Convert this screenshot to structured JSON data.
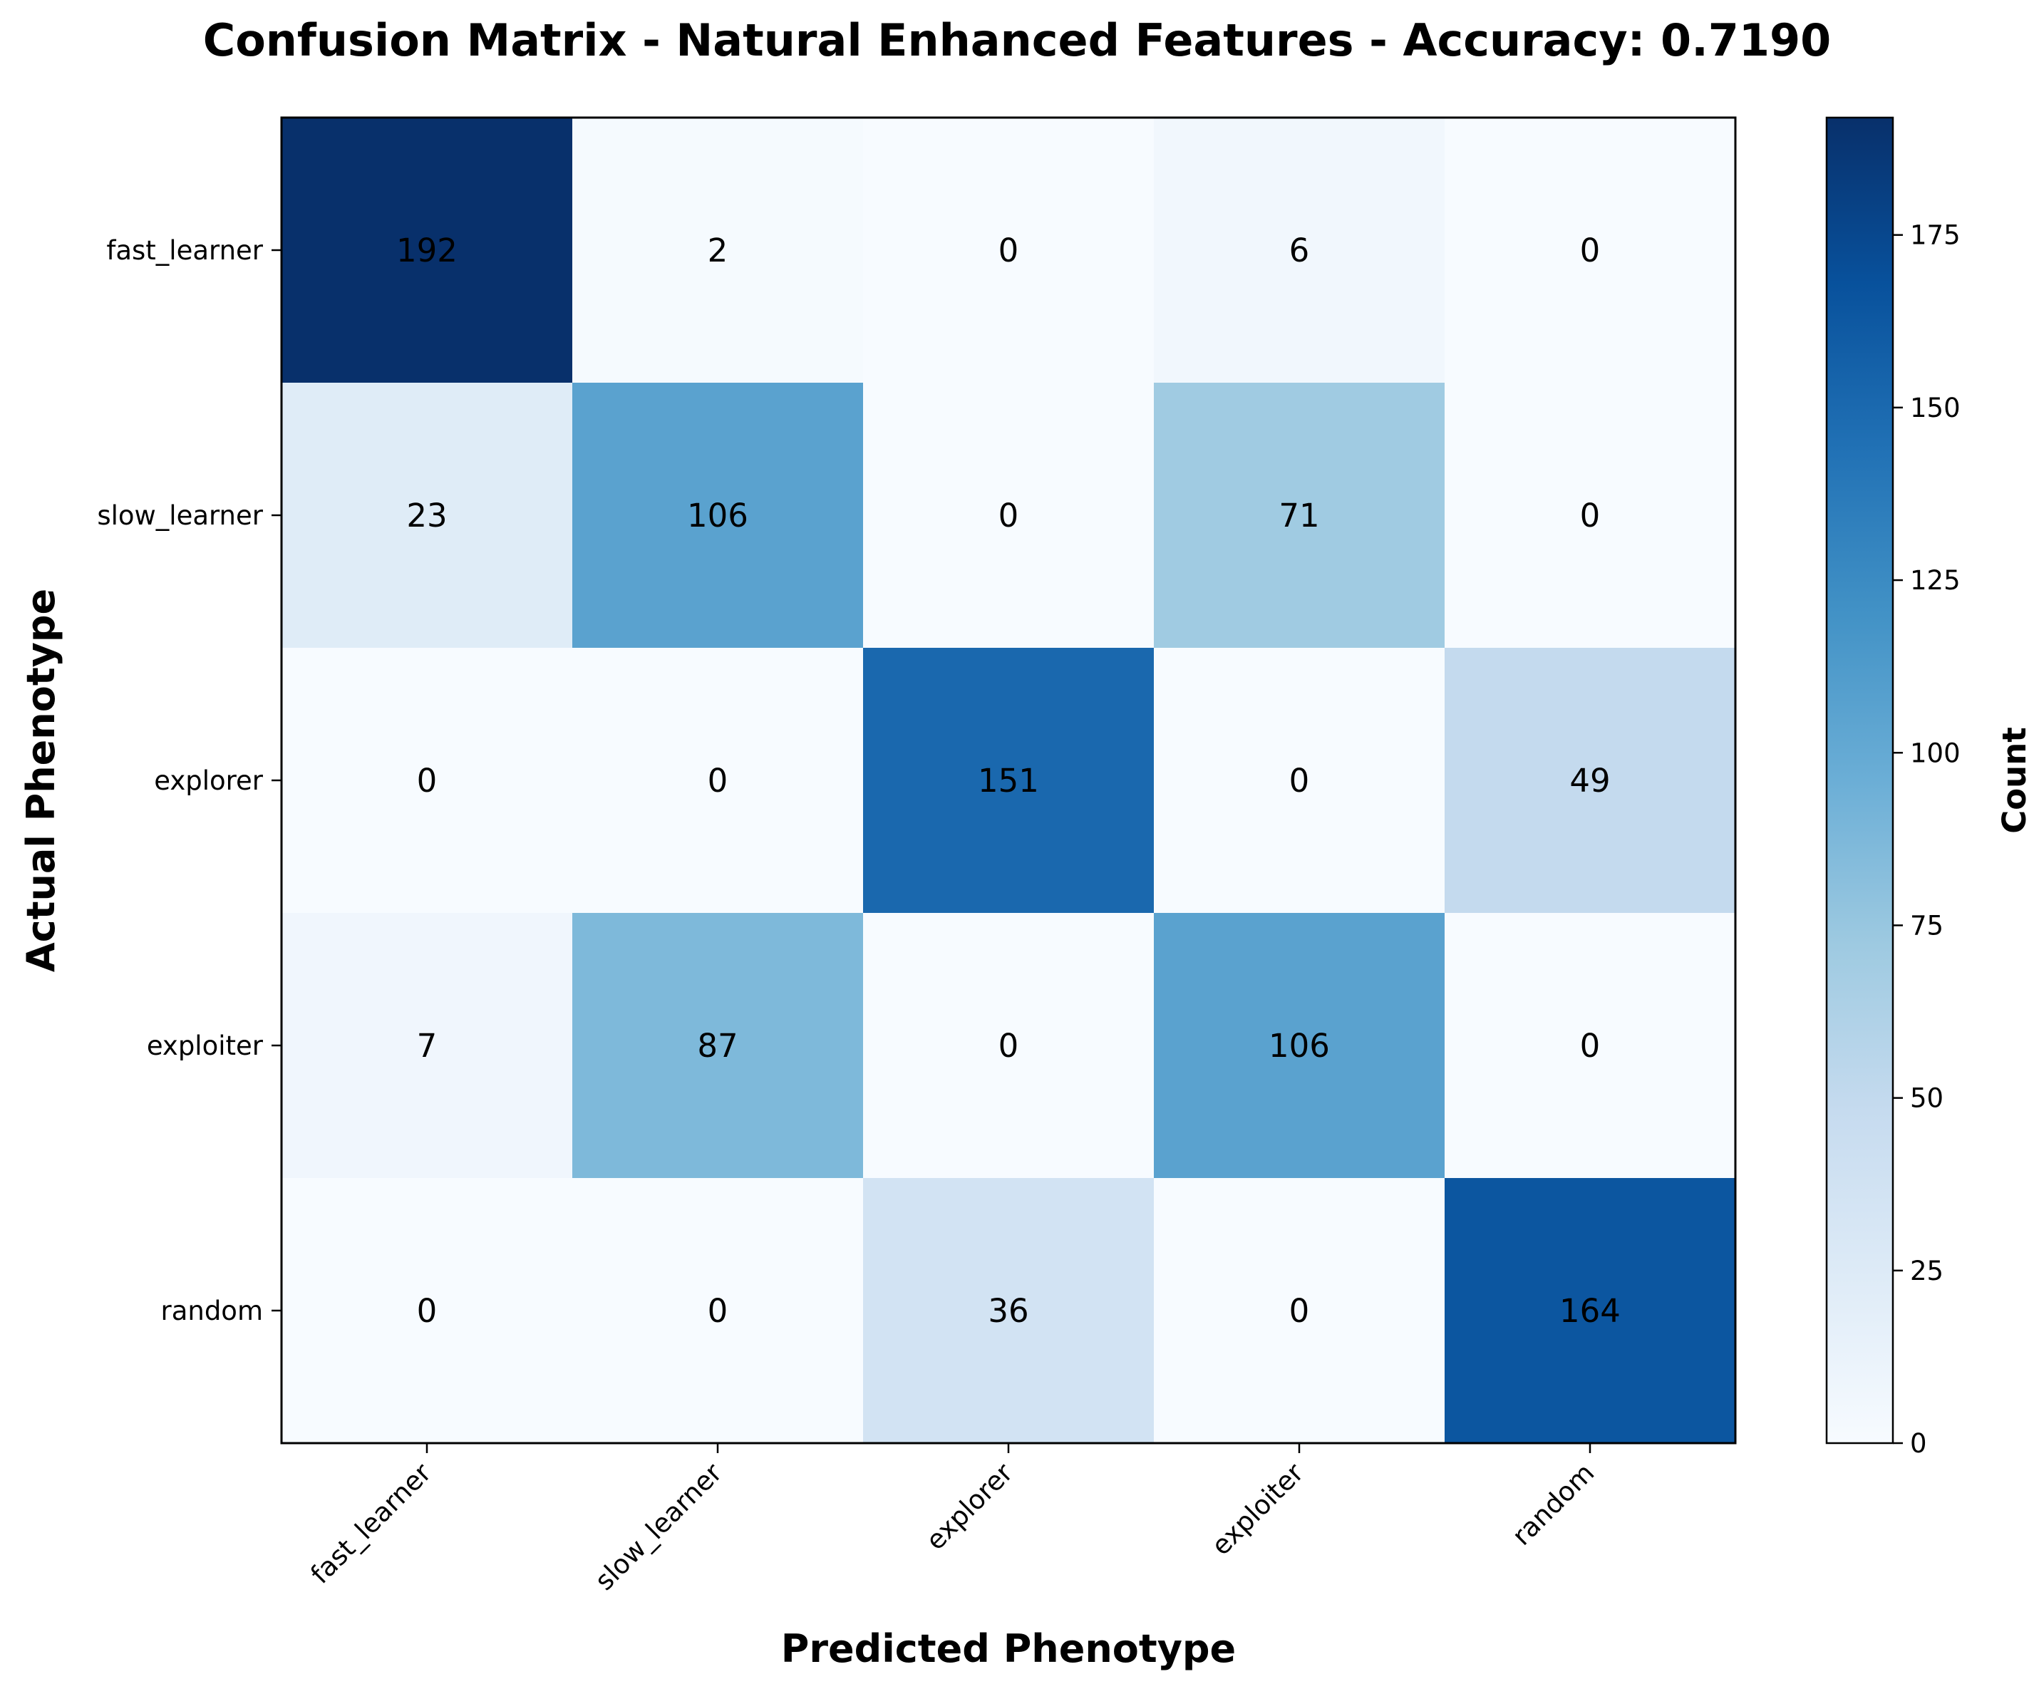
{
  "chart_data": {
    "type": "heatmap",
    "title": "Confusion Matrix - Natural Enhanced Features - Accuracy: 0.7190",
    "xlabel": "Predicted Phenotype",
    "ylabel": "Actual Phenotype",
    "x_categories": [
      "fast_learner",
      "slow_learner",
      "explorer",
      "exploiter",
      "random"
    ],
    "y_categories": [
      "fast_learner",
      "slow_learner",
      "explorer",
      "exploiter",
      "random"
    ],
    "matrix": [
      [
        192,
        2,
        0,
        6,
        0
      ],
      [
        23,
        106,
        0,
        71,
        0
      ],
      [
        0,
        0,
        151,
        0,
        49
      ],
      [
        7,
        87,
        0,
        106,
        0
      ],
      [
        0,
        0,
        36,
        0,
        164
      ]
    ],
    "colormap": "Blues",
    "colorbar": {
      "label": "Count",
      "vmin": 0,
      "vmax": 192,
      "ticks": [
        0,
        25,
        50,
        75,
        100,
        125,
        150,
        175
      ]
    }
  }
}
